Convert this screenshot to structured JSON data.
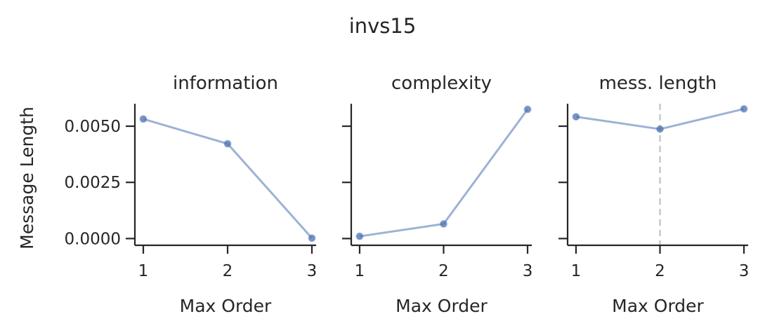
{
  "figure": {
    "title": "invs15"
  },
  "chart_data": [
    {
      "type": "line",
      "title": "information",
      "xlabel": "Max Order",
      "ylabel": "Message Length",
      "x": [
        1,
        2,
        3
      ],
      "xticks": [
        "1",
        "2",
        "3"
      ],
      "yticks": [
        "0.0050",
        "0.0025",
        "0.0000"
      ],
      "ytick_values": [
        0.005,
        0.0025,
        0.0
      ],
      "ylim": [
        -0.0003,
        0.006
      ],
      "series": [
        {
          "values": [
            0.00532,
            0.00422,
            2e-05
          ]
        }
      ],
      "color": "#4c72b0",
      "vline": null
    },
    {
      "type": "line",
      "title": "complexity",
      "xlabel": "Max Order",
      "ylabel": "",
      "x": [
        1,
        2,
        3
      ],
      "xticks": [
        "1",
        "2",
        "3"
      ],
      "yticks": [],
      "ytick_values": [
        0.005,
        0.0025,
        0.0
      ],
      "ylim": [
        -0.0003,
        0.006
      ],
      "series": [
        {
          "values": [
            0.0001,
            0.00065,
            0.00575
          ]
        }
      ],
      "color": "#4c72b0",
      "vline": null
    },
    {
      "type": "line",
      "title": "mess. length",
      "xlabel": "Max Order",
      "ylabel": "",
      "x": [
        1,
        2,
        3
      ],
      "xticks": [
        "1",
        "2",
        "3"
      ],
      "yticks": [],
      "ytick_values": [
        0.005,
        0.0025,
        0.0
      ],
      "ylim": [
        -0.0003,
        0.006
      ],
      "series": [
        {
          "values": [
            0.00542,
            0.00487,
            0.00577
          ]
        }
      ],
      "color": "#4c72b0",
      "vline": 2
    }
  ]
}
